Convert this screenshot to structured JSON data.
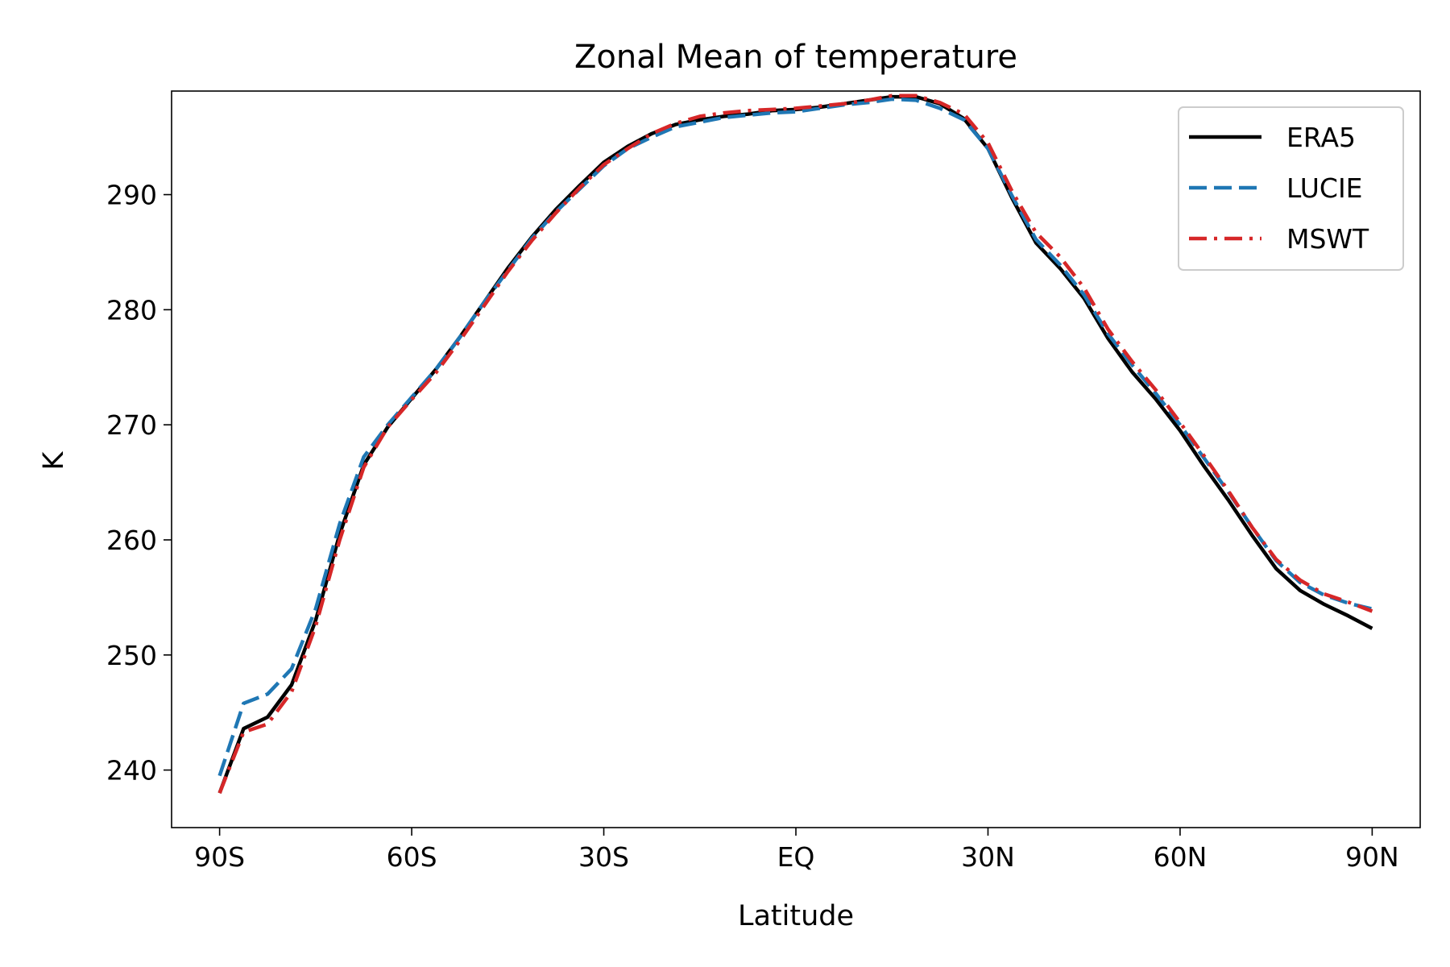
{
  "chart_data": {
    "type": "line",
    "title": "Zonal Mean of temperature",
    "xlabel": "Latitude",
    "ylabel": "K",
    "xlim": [
      -97.5,
      97.5
    ],
    "ylim": [
      235,
      299
    ],
    "x_ticks": [
      {
        "value": -90,
        "label": "90S"
      },
      {
        "value": -60,
        "label": "60S"
      },
      {
        "value": -30,
        "label": "30S"
      },
      {
        "value": 0,
        "label": "EQ"
      },
      {
        "value": 30,
        "label": "30N"
      },
      {
        "value": 60,
        "label": "60N"
      },
      {
        "value": 90,
        "label": "90N"
      }
    ],
    "y_ticks": [
      {
        "value": 240,
        "label": "240"
      },
      {
        "value": 250,
        "label": "250"
      },
      {
        "value": 260,
        "label": "260"
      },
      {
        "value": 270,
        "label": "270"
      },
      {
        "value": 280,
        "label": "280"
      },
      {
        "value": 290,
        "label": "290"
      }
    ],
    "grid": false,
    "legend_position": "top-right",
    "x": [
      -90,
      -86.25,
      -82.5,
      -78.75,
      -75,
      -71.25,
      -67.5,
      -63.75,
      -60,
      -56.25,
      -52.5,
      -48.75,
      -45,
      -41.25,
      -37.5,
      -33.75,
      -30,
      -26.25,
      -22.5,
      -18.75,
      -15,
      -11.25,
      -7.5,
      -3.75,
      0,
      3.75,
      7.5,
      11.25,
      15,
      18.75,
      22.5,
      26.25,
      30,
      33.75,
      37.5,
      41.25,
      45,
      48.75,
      52.5,
      56.25,
      60,
      63.75,
      67.5,
      71.25,
      75,
      78.75,
      82.5,
      86.25,
      90
    ],
    "series": [
      {
        "name": "ERA5",
        "color": "#000000",
        "dash": "solid",
        "values": [
          238.0,
          243.6,
          244.6,
          247.4,
          253.0,
          260.5,
          266.5,
          269.8,
          272.3,
          274.8,
          277.6,
          280.6,
          283.6,
          286.3,
          288.7,
          290.8,
          292.8,
          294.2,
          295.3,
          296.1,
          296.5,
          296.8,
          297.0,
          297.3,
          297.4,
          297.6,
          297.9,
          298.2,
          298.5,
          298.5,
          297.9,
          296.6,
          294.0,
          289.7,
          285.8,
          283.6,
          281.0,
          277.5,
          274.6,
          272.2,
          269.5,
          266.4,
          263.5,
          260.4,
          257.5,
          255.6,
          254.4,
          253.4,
          252.3
        ]
      },
      {
        "name": "LUCIE",
        "color": "#1f77b4",
        "dash": "dashed",
        "values": [
          239.5,
          245.8,
          246.6,
          248.8,
          254.0,
          261.4,
          267.2,
          270.0,
          272.4,
          274.8,
          277.6,
          280.6,
          283.4,
          286.2,
          288.5,
          290.5,
          292.5,
          294.0,
          295.0,
          295.9,
          296.3,
          296.7,
          296.9,
          297.1,
          297.2,
          297.5,
          297.8,
          298.0,
          298.3,
          298.2,
          297.5,
          296.5,
          294.0,
          289.9,
          286.1,
          283.9,
          281.3,
          277.9,
          275.2,
          272.7,
          270.0,
          267.1,
          264.2,
          261.1,
          258.2,
          256.3,
          255.2,
          254.5,
          254.0
        ]
      },
      {
        "name": "MSWT",
        "color": "#d62728",
        "dash": "dashdot",
        "values": [
          238.0,
          243.3,
          244.0,
          246.8,
          252.5,
          260.0,
          266.3,
          269.8,
          272.2,
          274.5,
          277.3,
          280.3,
          283.3,
          286.0,
          288.4,
          290.6,
          292.6,
          294.0,
          295.3,
          296.2,
          296.8,
          297.1,
          297.3,
          297.4,
          297.5,
          297.7,
          297.9,
          298.2,
          298.6,
          298.6,
          298.0,
          297.0,
          294.5,
          290.3,
          286.7,
          284.6,
          281.9,
          278.3,
          275.5,
          273.0,
          270.2,
          267.3,
          264.3,
          261.1,
          258.3,
          256.5,
          255.3,
          254.6,
          253.8
        ]
      }
    ]
  }
}
